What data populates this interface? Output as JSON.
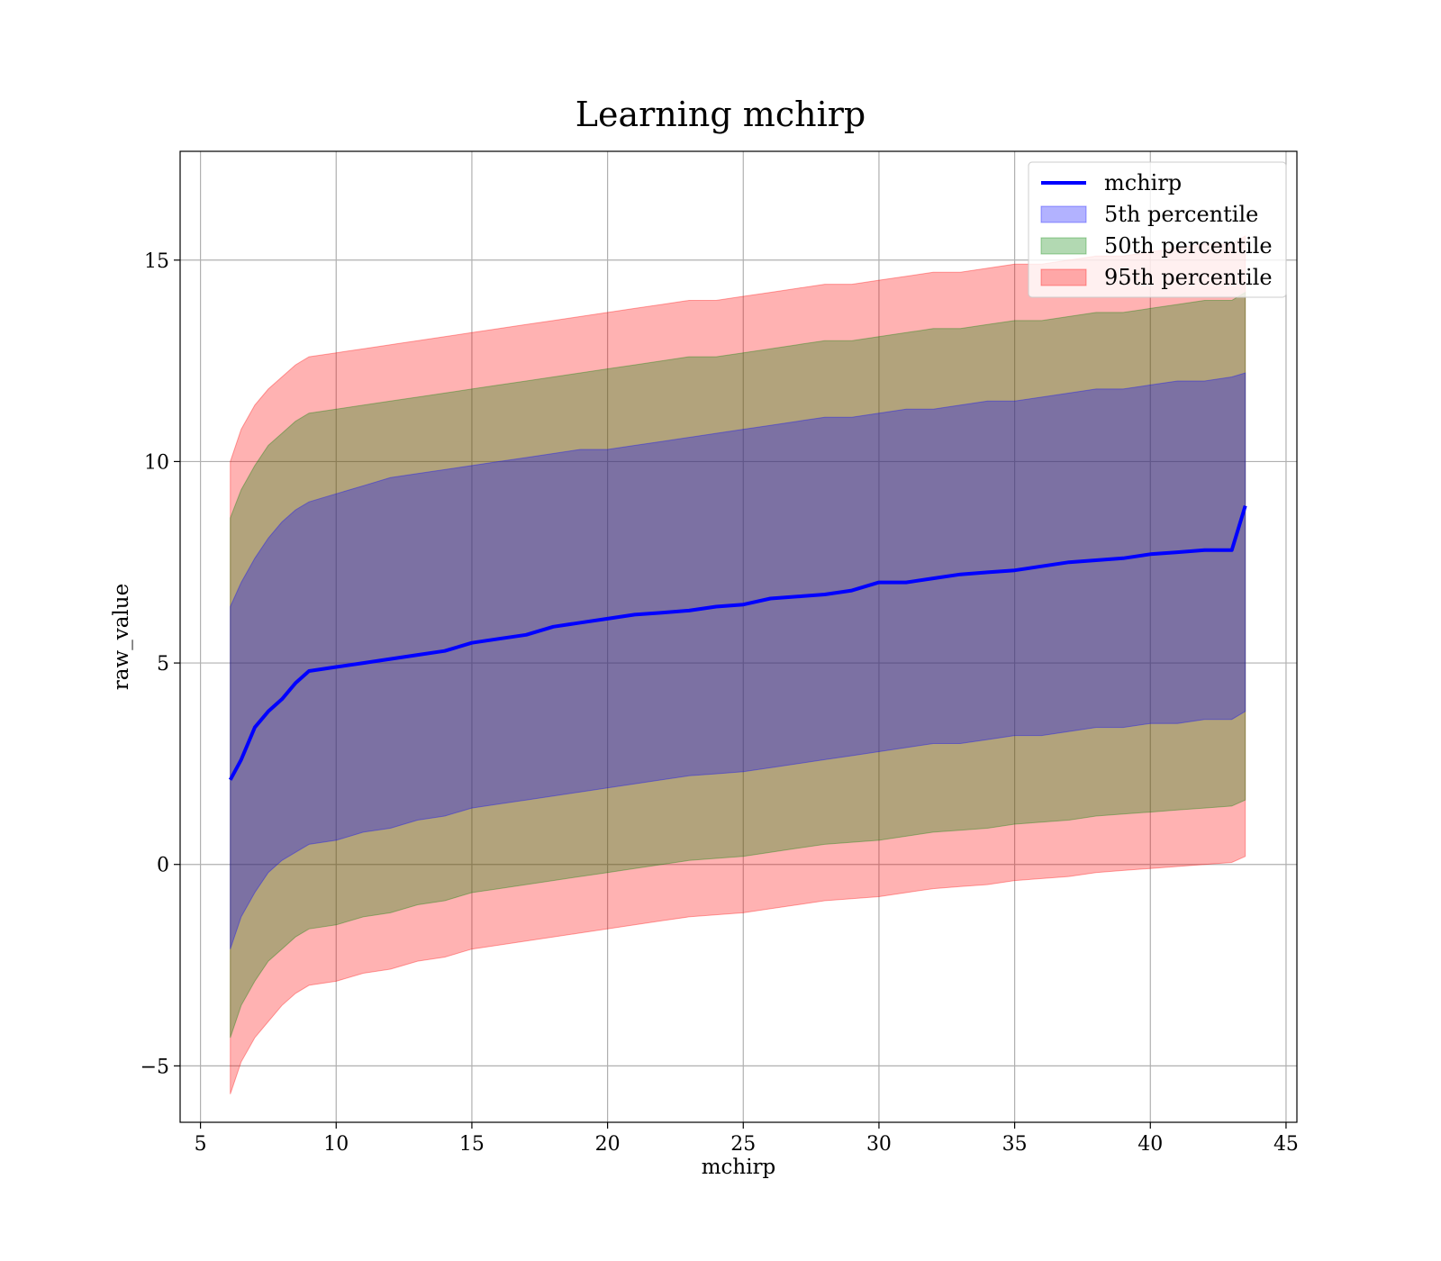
{
  "chart_data": {
    "type": "area",
    "title": "Learning mchirp",
    "xlabel": "mchirp",
    "ylabel": "raw_value",
    "xlim": [
      4.25,
      45.4
    ],
    "ylim": [
      -6.4,
      17.7
    ],
    "xticks": [
      5,
      10,
      15,
      20,
      25,
      30,
      35,
      40,
      45
    ],
    "xtick_labels": [
      "5",
      "10",
      "15",
      "20",
      "25",
      "30",
      "35",
      "40",
      "45"
    ],
    "yticks": [
      -5,
      0,
      5,
      10,
      15
    ],
    "ytick_labels": [
      "−5",
      "0",
      "5",
      "10",
      "15"
    ],
    "grid": true,
    "legend_position": "top-right",
    "colors": {
      "line": "#0000ff",
      "band_5th": "#0000ff",
      "band_50th": "#008000",
      "band_95th": "#ff0000",
      "grid": "#b0b0b0"
    },
    "x": [
      6.1,
      6.5,
      7.0,
      7.5,
      8.0,
      8.5,
      9.0,
      10.0,
      11.0,
      12.0,
      13.0,
      14.0,
      15.0,
      16.0,
      17.0,
      18.0,
      19.0,
      20.0,
      21.0,
      22.0,
      23.0,
      24.0,
      25.0,
      26.0,
      27.0,
      28.0,
      29.0,
      30.0,
      31.0,
      32.0,
      33.0,
      34.0,
      35.0,
      36.0,
      37.0,
      38.0,
      39.0,
      40.0,
      41.0,
      42.0,
      43.0,
      43.5
    ],
    "series": [
      {
        "name": "mchirp",
        "kind": "line",
        "values": [
          2.1,
          2.6,
          3.4,
          3.8,
          4.1,
          4.5,
          4.8,
          4.9,
          5.0,
          5.1,
          5.2,
          5.3,
          5.5,
          5.6,
          5.7,
          5.9,
          6.0,
          6.1,
          6.2,
          6.25,
          6.3,
          6.4,
          6.45,
          6.6,
          6.65,
          6.7,
          6.8,
          7.0,
          7.0,
          7.1,
          7.2,
          7.25,
          7.3,
          7.4,
          7.5,
          7.55,
          7.6,
          7.7,
          7.75,
          7.8,
          7.8,
          8.9
        ]
      },
      {
        "name": "5th percentile",
        "kind": "band",
        "upper": [
          6.4,
          7.0,
          7.6,
          8.1,
          8.5,
          8.8,
          9.0,
          9.2,
          9.4,
          9.6,
          9.7,
          9.8,
          9.9,
          10.0,
          10.1,
          10.2,
          10.3,
          10.3,
          10.4,
          10.5,
          10.6,
          10.7,
          10.8,
          10.9,
          11.0,
          11.1,
          11.1,
          11.2,
          11.3,
          11.3,
          11.4,
          11.5,
          11.5,
          11.6,
          11.7,
          11.8,
          11.8,
          11.9,
          12.0,
          12.0,
          12.1,
          12.2
        ],
        "lower": [
          -2.1,
          -1.3,
          -0.7,
          -0.2,
          0.1,
          0.3,
          0.5,
          0.6,
          0.8,
          0.9,
          1.1,
          1.2,
          1.4,
          1.5,
          1.6,
          1.7,
          1.8,
          1.9,
          2.0,
          2.1,
          2.2,
          2.25,
          2.3,
          2.4,
          2.5,
          2.6,
          2.7,
          2.8,
          2.9,
          3.0,
          3.0,
          3.1,
          3.2,
          3.2,
          3.3,
          3.4,
          3.4,
          3.5,
          3.5,
          3.6,
          3.6,
          3.8
        ]
      },
      {
        "name": "50th percentile",
        "kind": "band",
        "upper": [
          8.6,
          9.3,
          9.9,
          10.4,
          10.7,
          11.0,
          11.2,
          11.3,
          11.4,
          11.5,
          11.6,
          11.7,
          11.8,
          11.9,
          12.0,
          12.1,
          12.2,
          12.3,
          12.4,
          12.5,
          12.6,
          12.6,
          12.7,
          12.8,
          12.9,
          13.0,
          13.0,
          13.1,
          13.2,
          13.3,
          13.3,
          13.4,
          13.5,
          13.5,
          13.6,
          13.7,
          13.7,
          13.8,
          13.9,
          14.0,
          14.0,
          14.2
        ],
        "lower": [
          -4.3,
          -3.5,
          -2.9,
          -2.4,
          -2.1,
          -1.8,
          -1.6,
          -1.5,
          -1.3,
          -1.2,
          -1.0,
          -0.9,
          -0.7,
          -0.6,
          -0.5,
          -0.4,
          -0.3,
          -0.2,
          -0.1,
          0.0,
          0.1,
          0.15,
          0.2,
          0.3,
          0.4,
          0.5,
          0.55,
          0.6,
          0.7,
          0.8,
          0.85,
          0.9,
          1.0,
          1.05,
          1.1,
          1.2,
          1.25,
          1.3,
          1.35,
          1.4,
          1.45,
          1.6
        ]
      },
      {
        "name": "95th percentile",
        "kind": "band",
        "upper": [
          10.0,
          10.8,
          11.4,
          11.8,
          12.1,
          12.4,
          12.6,
          12.7,
          12.8,
          12.9,
          13.0,
          13.1,
          13.2,
          13.3,
          13.4,
          13.5,
          13.6,
          13.7,
          13.8,
          13.9,
          14.0,
          14.0,
          14.1,
          14.2,
          14.3,
          14.4,
          14.4,
          14.5,
          14.6,
          14.7,
          14.7,
          14.8,
          14.9,
          14.9,
          15.0,
          15.1,
          15.1,
          15.2,
          15.3,
          15.4,
          15.4,
          15.6
        ],
        "lower": [
          -5.7,
          -4.9,
          -4.3,
          -3.9,
          -3.5,
          -3.2,
          -3.0,
          -2.9,
          -2.7,
          -2.6,
          -2.4,
          -2.3,
          -2.1,
          -2.0,
          -1.9,
          -1.8,
          -1.7,
          -1.6,
          -1.5,
          -1.4,
          -1.3,
          -1.25,
          -1.2,
          -1.1,
          -1.0,
          -0.9,
          -0.85,
          -0.8,
          -0.7,
          -0.6,
          -0.55,
          -0.5,
          -0.4,
          -0.35,
          -0.3,
          -0.2,
          -0.15,
          -0.1,
          -0.05,
          0.0,
          0.05,
          0.2
        ]
      }
    ],
    "legend": [
      {
        "label": "mchirp",
        "kind": "line",
        "color": "#0000ff"
      },
      {
        "label": "5th percentile",
        "kind": "patch",
        "color": "#0000ff"
      },
      {
        "label": "50th percentile",
        "kind": "patch",
        "color": "#008000"
      },
      {
        "label": "95th percentile",
        "kind": "patch",
        "color": "#ff0000"
      }
    ]
  }
}
